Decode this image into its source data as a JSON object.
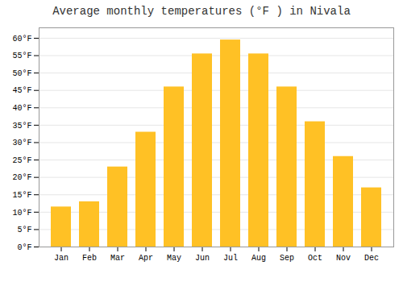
{
  "chart_data": {
    "type": "bar",
    "title": "Average monthly temperatures (°F ) in Nivala",
    "categories": [
      "Jan",
      "Feb",
      "Mar",
      "Apr",
      "May",
      "Jun",
      "Jul",
      "Aug",
      "Sep",
      "Oct",
      "Nov",
      "Dec"
    ],
    "values": [
      11.5,
      13.0,
      23.0,
      33.0,
      46.0,
      55.5,
      59.5,
      55.5,
      46.0,
      36.0,
      26.0,
      17.0
    ],
    "color": "#FFC125",
    "ylim": [
      0,
      63
    ],
    "yticks": [
      {
        "value": 0,
        "label": "0°F"
      },
      {
        "value": 5,
        "label": "5°F"
      },
      {
        "value": 10,
        "label": "10°F"
      },
      {
        "value": 15,
        "label": "15°F"
      },
      {
        "value": 20,
        "label": "20°F"
      },
      {
        "value": 25,
        "label": "25°F"
      },
      {
        "value": 30,
        "label": "30°F"
      },
      {
        "value": 35,
        "label": "35°F"
      },
      {
        "value": 40,
        "label": "40°F"
      },
      {
        "value": 45,
        "label": "45°F"
      },
      {
        "value": 50,
        "label": "50°F"
      },
      {
        "value": 55,
        "label": "55°F"
      },
      {
        "value": 60,
        "label": "60°F"
      }
    ],
    "grid": true
  }
}
